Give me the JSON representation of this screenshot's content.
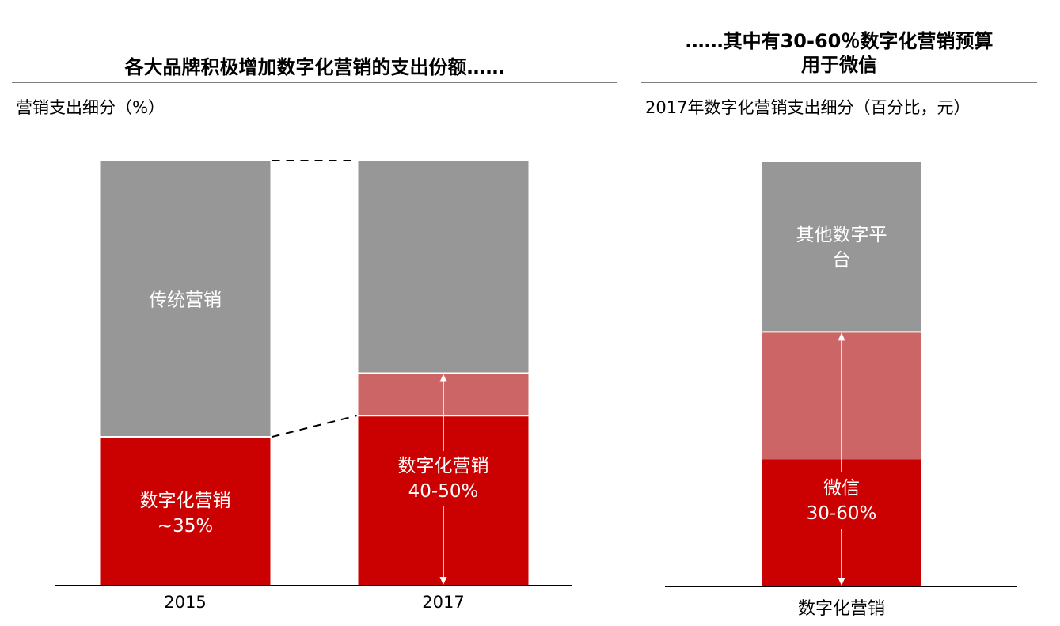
{
  "colors": {
    "gray": "#979797",
    "light_red": "#cc6565",
    "red": "#cb0000",
    "axis": "#000000",
    "rule": "#7f7f7f"
  },
  "left_panel": {
    "title": "各大品牌积极增加数字化营销的支出份额……",
    "subtitle": "营销支出细分（%）"
  },
  "right_panel": {
    "title_line1": "……其中有30-60％数字化营销预算",
    "title_line2": "用于微信",
    "subtitle": "2017年数字化营销支出细分（百分比，元）"
  },
  "chart_data": [
    {
      "type": "bar",
      "stacked": true,
      "normalized": true,
      "categories": [
        "2015",
        "2017"
      ],
      "ylim": [
        0,
        100
      ],
      "series": [
        {
          "name": "数字化营销",
          "values": [
            35,
            40
          ],
          "color": "#cb0000"
        },
        {
          "values": [
            0,
            10
          ],
          "color": "#cc6565"
        },
        {
          "name": "传统营销",
          "values": [
            65,
            50
          ],
          "color": "#979797"
        }
      ],
      "bar_labels": [
        {
          "category": "2015",
          "lines": [
            "数字化营销",
            "~35%"
          ]
        },
        {
          "category": "2017",
          "lines": [
            "数字化营销",
            "40-50%"
          ]
        }
      ],
      "gray_label": "传统营销",
      "connectors": "dashed",
      "range_arrow": {
        "category": "2017",
        "from": 0,
        "to": 50
      }
    },
    {
      "type": "bar",
      "stacked": true,
      "normalized": true,
      "categories": [
        "数字化营销"
      ],
      "ylim": [
        0,
        100
      ],
      "series": [
        {
          "name": "微信",
          "values": [
            30
          ],
          "color": "#cb0000"
        },
        {
          "values": [
            30
          ],
          "color": "#cc6565"
        },
        {
          "name": "其他数字平台",
          "values": [
            40
          ],
          "color": "#979797"
        }
      ],
      "bar_label": [
        "微信",
        "30-60%"
      ],
      "gray_label": [
        "其他数字平",
        "台"
      ],
      "range_arrow": {
        "from": 0,
        "to": 60
      }
    }
  ]
}
